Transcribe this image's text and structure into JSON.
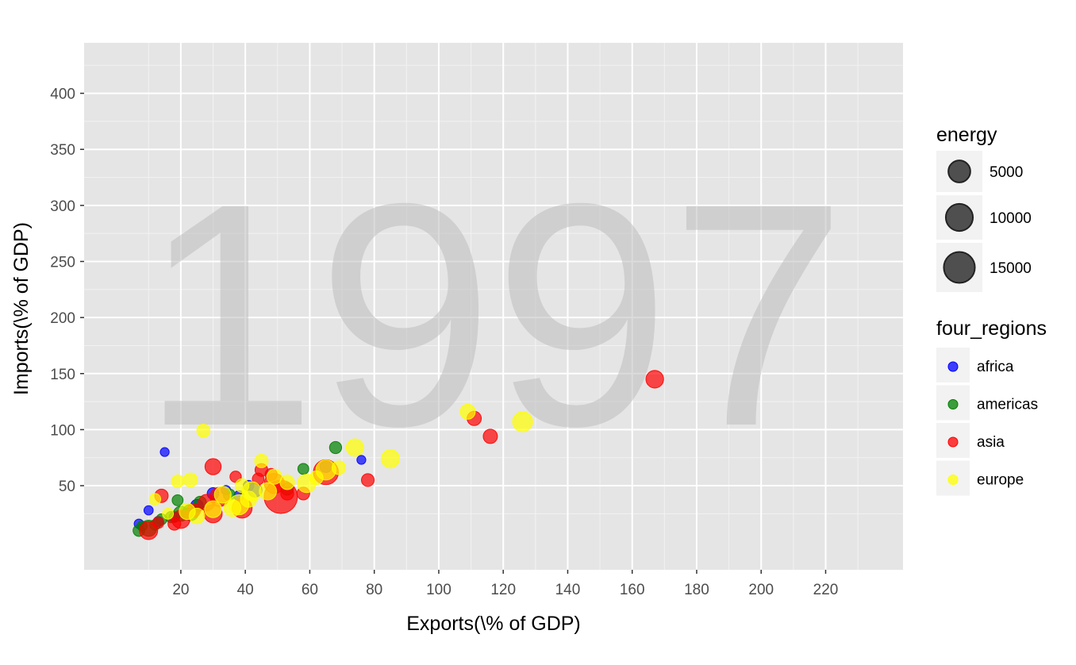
{
  "chart_data": {
    "type": "scatter",
    "annotation": "1997",
    "xlabel": "Exports(\\% of GDP)",
    "ylabel": "Imports(\\% of GDP)",
    "xlim": [
      -10,
      244
    ],
    "ylim": [
      -25,
      445
    ],
    "x_ticks": [
      20,
      40,
      60,
      80,
      100,
      120,
      140,
      160,
      180,
      200,
      220
    ],
    "y_ticks": [
      50,
      100,
      150,
      200,
      250,
      300,
      350,
      400
    ],
    "grid": true,
    "legend_position": "right",
    "size_legend": {
      "title": "energy",
      "entries": [
        {
          "label": "5000",
          "value": 5000
        },
        {
          "label": "10000",
          "value": 10000
        },
        {
          "label": "15000",
          "value": 15000
        }
      ]
    },
    "color_legend": {
      "title": "four_regions",
      "entries": [
        {
          "label": "africa",
          "color": "#0000ff"
        },
        {
          "label": "americas",
          "color": "#008000"
        },
        {
          "label": "asia",
          "color": "#ff0000"
        },
        {
          "label": "europe",
          "color": "#ffff00"
        }
      ]
    },
    "series": [
      {
        "region": "africa",
        "color": "#0000ff",
        "points": [
          {
            "x": 7,
            "y": 16,
            "size": 400
          },
          {
            "x": 10,
            "y": 28,
            "size": 350
          },
          {
            "x": 15,
            "y": 80,
            "size": 300
          },
          {
            "x": 22,
            "y": 25,
            "size": 800
          },
          {
            "x": 25,
            "y": 32,
            "size": 1200
          },
          {
            "x": 30,
            "y": 43,
            "size": 900
          },
          {
            "x": 34,
            "y": 46,
            "size": 400
          },
          {
            "x": 38,
            "y": 41,
            "size": 500
          },
          {
            "x": 41,
            "y": 50,
            "size": 600
          },
          {
            "x": 43,
            "y": 46,
            "size": 1600
          },
          {
            "x": 65,
            "y": 67,
            "size": 900
          },
          {
            "x": 76,
            "y": 73,
            "size": 300
          },
          {
            "x": 13,
            "y": 18,
            "size": 500
          },
          {
            "x": 18,
            "y": 22,
            "size": 600
          }
        ]
      },
      {
        "region": "americas",
        "color": "#008000",
        "points": [
          {
            "x": 7,
            "y": 10,
            "size": 900
          },
          {
            "x": 10,
            "y": 12,
            "size": 2500
          },
          {
            "x": 12,
            "y": 15,
            "size": 600
          },
          {
            "x": 14,
            "y": 20,
            "size": 700
          },
          {
            "x": 17,
            "y": 22,
            "size": 800
          },
          {
            "x": 19,
            "y": 37,
            "size": 700
          },
          {
            "x": 20,
            "y": 25,
            "size": 2000
          },
          {
            "x": 23,
            "y": 26,
            "size": 2500
          },
          {
            "x": 26,
            "y": 35,
            "size": 1100
          },
          {
            "x": 35,
            "y": 42,
            "size": 900
          },
          {
            "x": 53,
            "y": 47,
            "size": 1100
          },
          {
            "x": 58,
            "y": 65,
            "size": 700
          },
          {
            "x": 68,
            "y": 84,
            "size": 1000
          },
          {
            "x": 8,
            "y": 14,
            "size": 500
          }
        ]
      },
      {
        "region": "asia",
        "color": "#ff0000",
        "points": [
          {
            "x": 10,
            "y": 10,
            "size": 3500
          },
          {
            "x": 13,
            "y": 17,
            "size": 800
          },
          {
            "x": 14,
            "y": 41,
            "size": 1400
          },
          {
            "x": 18,
            "y": 16,
            "size": 1200
          },
          {
            "x": 20,
            "y": 20,
            "size": 3500
          },
          {
            "x": 24,
            "y": 28,
            "size": 1500
          },
          {
            "x": 28,
            "y": 35,
            "size": 2500
          },
          {
            "x": 30,
            "y": 25,
            "size": 3500
          },
          {
            "x": 30,
            "y": 67,
            "size": 2500
          },
          {
            "x": 32,
            "y": 40,
            "size": 4000
          },
          {
            "x": 37,
            "y": 58,
            "size": 800
          },
          {
            "x": 39,
            "y": 30,
            "size": 4500
          },
          {
            "x": 45,
            "y": 64,
            "size": 1200
          },
          {
            "x": 48,
            "y": 60,
            "size": 1000
          },
          {
            "x": 49,
            "y": 52,
            "size": 4500
          },
          {
            "x": 51,
            "y": 40,
            "size": 16000
          },
          {
            "x": 53,
            "y": 43,
            "size": 1300
          },
          {
            "x": 58,
            "y": 43,
            "size": 1200
          },
          {
            "x": 65,
            "y": 62,
            "size": 8000
          },
          {
            "x": 78,
            "y": 55,
            "size": 1200
          },
          {
            "x": 111,
            "y": 110,
            "size": 1700
          },
          {
            "x": 116,
            "y": 94,
            "size": 1700
          },
          {
            "x": 167,
            "y": 145,
            "size": 3200
          },
          {
            "x": 44,
            "y": 56,
            "size": 900
          }
        ]
      },
      {
        "region": "europe",
        "color": "#ffff00",
        "points": [
          {
            "x": 12,
            "y": 38,
            "size": 800
          },
          {
            "x": 16,
            "y": 25,
            "size": 700
          },
          {
            "x": 19,
            "y": 54,
            "size": 1100
          },
          {
            "x": 22,
            "y": 27,
            "size": 2500
          },
          {
            "x": 23,
            "y": 55,
            "size": 1600
          },
          {
            "x": 25,
            "y": 23,
            "size": 2200
          },
          {
            "x": 27,
            "y": 99,
            "size": 1300
          },
          {
            "x": 30,
            "y": 29,
            "size": 2800
          },
          {
            "x": 33,
            "y": 42,
            "size": 2800
          },
          {
            "x": 36,
            "y": 30,
            "size": 2800
          },
          {
            "x": 38,
            "y": 33,
            "size": 4500
          },
          {
            "x": 39,
            "y": 50,
            "size": 1500
          },
          {
            "x": 41,
            "y": 38,
            "size": 2500
          },
          {
            "x": 42,
            "y": 45,
            "size": 4000
          },
          {
            "x": 45,
            "y": 72,
            "size": 1400
          },
          {
            "x": 47,
            "y": 45,
            "size": 3000
          },
          {
            "x": 49,
            "y": 58,
            "size": 2000
          },
          {
            "x": 53,
            "y": 53,
            "size": 1800
          },
          {
            "x": 59,
            "y": 52,
            "size": 3500
          },
          {
            "x": 62,
            "y": 57,
            "size": 1500
          },
          {
            "x": 65,
            "y": 64,
            "size": 4500
          },
          {
            "x": 69,
            "y": 66,
            "size": 1500
          },
          {
            "x": 74,
            "y": 84,
            "size": 3000
          },
          {
            "x": 85,
            "y": 74,
            "size": 3500
          },
          {
            "x": 109,
            "y": 116,
            "size": 2000
          },
          {
            "x": 126,
            "y": 107,
            "size": 4500
          }
        ]
      }
    ]
  }
}
